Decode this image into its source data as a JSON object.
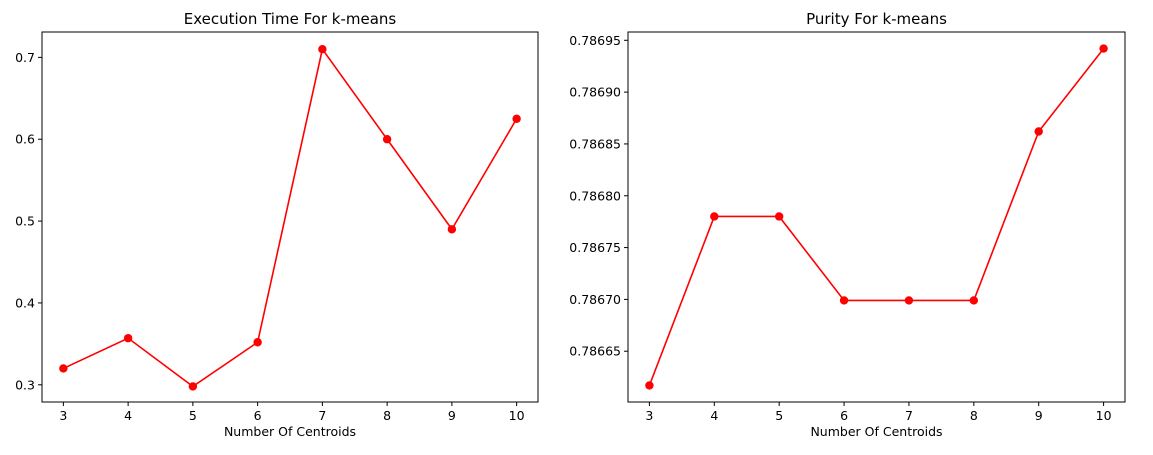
{
  "chart_data": [
    {
      "type": "line",
      "title": "Execution Time For k-means",
      "xlabel": "Number Of Centroids",
      "ylabel": "",
      "x": [
        3,
        4,
        5,
        6,
        7,
        8,
        9,
        10
      ],
      "xticks": [
        "3",
        "4",
        "5",
        "6",
        "7",
        "8",
        "9",
        "10"
      ],
      "yticks": [
        "0.3",
        "0.4",
        "0.5",
        "0.6",
        "0.7"
      ],
      "ytick_values": [
        0.3,
        0.4,
        0.5,
        0.6,
        0.7
      ],
      "ylim": [
        0.279,
        0.731
      ],
      "xlim": [
        2.67,
        10.33
      ],
      "series": [
        {
          "values": [
            0.32,
            0.357,
            0.298,
            0.352,
            0.71,
            0.6,
            0.49,
            0.625
          ],
          "color": "#ff0000",
          "marker": "circle"
        }
      ],
      "grid": false
    },
    {
      "type": "line",
      "title": "Purity For k-means",
      "xlabel": "Number Of Centroids",
      "ylabel": "",
      "x": [
        3,
        4,
        5,
        6,
        7,
        8,
        9,
        10
      ],
      "xticks": [
        "3",
        "4",
        "5",
        "6",
        "7",
        "8",
        "9",
        "10"
      ],
      "yticks": [
        "0.78665",
        "0.78670",
        "0.78675",
        "0.78680",
        "0.78685",
        "0.78690",
        "0.78695"
      ],
      "ytick_values": [
        0.78665,
        0.7867,
        0.78675,
        0.7868,
        0.78685,
        0.7869,
        0.78695
      ],
      "ylim": [
        0.786601,
        0.786958
      ],
      "xlim": [
        2.67,
        10.33
      ],
      "series": [
        {
          "values": [
            0.786617,
            0.78678,
            0.78678,
            0.786699,
            0.786699,
            0.786699,
            0.786862,
            0.786942
          ],
          "color": "#ff0000",
          "marker": "circle"
        }
      ],
      "grid": false
    }
  ]
}
